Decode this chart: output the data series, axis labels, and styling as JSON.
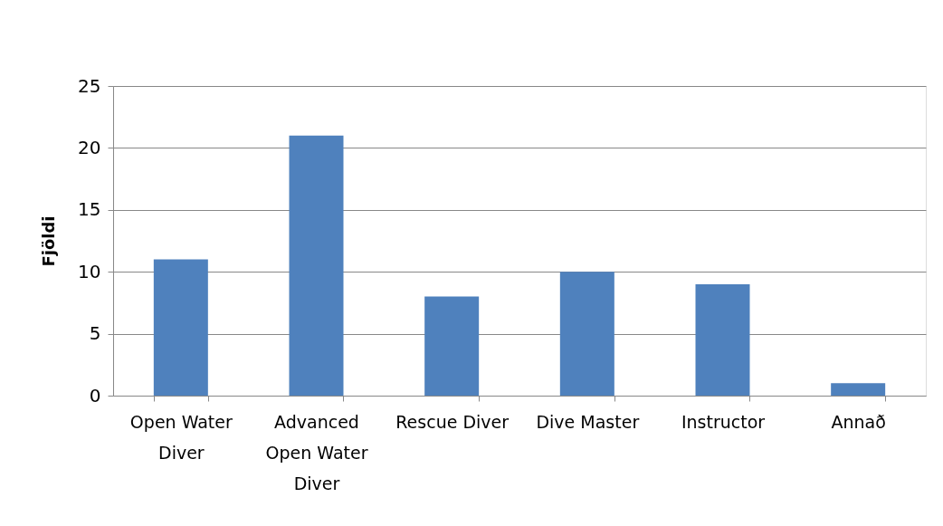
{
  "chart_data": {
    "type": "bar",
    "ylabel": "Fjöldi",
    "categories": [
      "Open Water Diver",
      "Advanced Open Water Diver",
      "Rescue Diver",
      "Dive Master",
      "Instructor",
      "Annað"
    ],
    "values": [
      11,
      21,
      8,
      10,
      9,
      1
    ],
    "color": "#4f81bd",
    "ylim": [
      0,
      25
    ],
    "yticks": [
      0,
      5,
      10,
      15,
      20,
      25
    ],
    "grid": "y"
  }
}
